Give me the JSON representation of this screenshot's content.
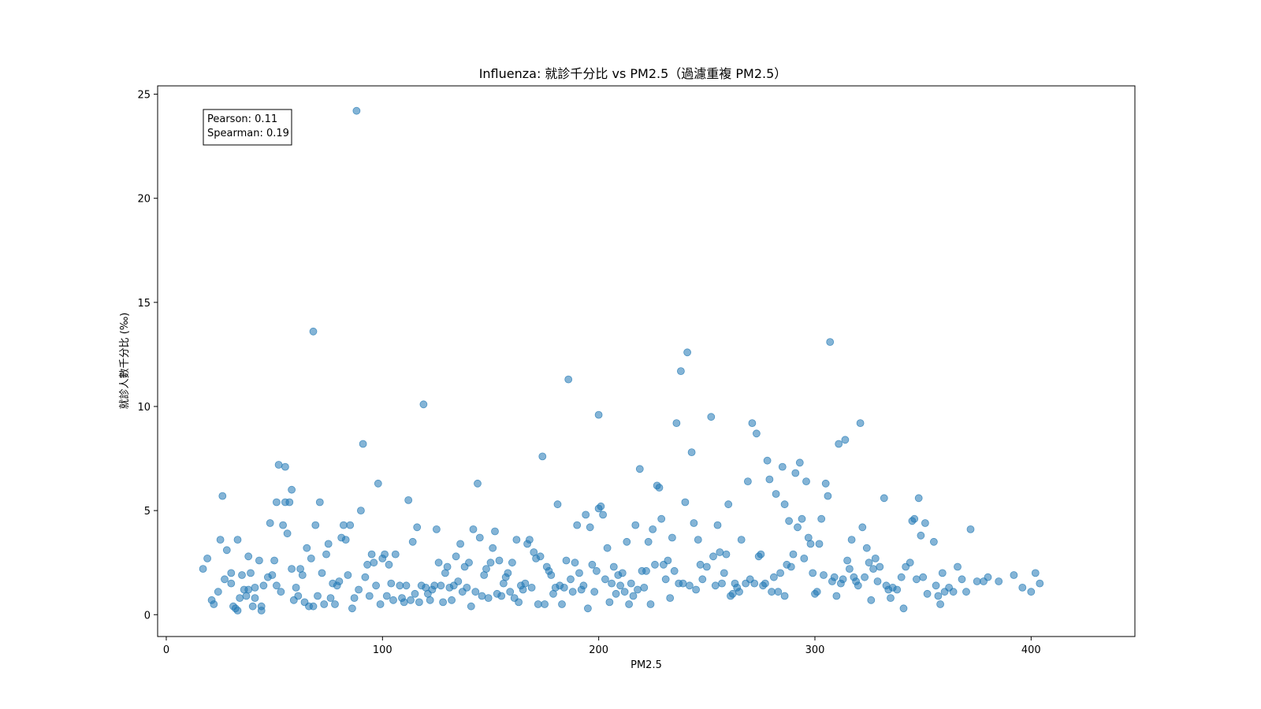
{
  "chart_data": {
    "type": "scatter",
    "title": "Influenza: 就診千分比 vs PM2.5（過濾重複 PM2.5）",
    "xlabel": "PM2.5",
    "ylabel": "就診人數千分比 (‰)",
    "xlim": [
      -4,
      448
    ],
    "ylim": [
      -1.05,
      25.4
    ],
    "xticks": [
      0,
      100,
      200,
      300,
      400
    ],
    "yticks": [
      0,
      5,
      10,
      15,
      20,
      25
    ],
    "grid": false,
    "marker_color": "#1f77b4",
    "marker_alpha": 0.55,
    "stats_box": {
      "pearson": "Pearson: 0.11",
      "spearman": "Spearman: 0.19"
    },
    "points": [
      [
        17,
        2.2
      ],
      [
        19,
        2.7
      ],
      [
        21,
        0.7
      ],
      [
        22,
        0.5
      ],
      [
        24,
        1.1
      ],
      [
        25,
        3.6
      ],
      [
        26,
        5.7
      ],
      [
        27,
        1.7
      ],
      [
        28,
        3.1
      ],
      [
        30,
        1.5
      ],
      [
        30,
        2.0
      ],
      [
        31,
        0.4
      ],
      [
        32,
        0.3
      ],
      [
        33,
        0.2
      ],
      [
        33,
        3.6
      ],
      [
        34,
        0.8
      ],
      [
        35,
        1.9
      ],
      [
        36,
        1.2
      ],
      [
        37,
        0.9
      ],
      [
        38,
        1.2
      ],
      [
        38,
        2.8
      ],
      [
        39,
        2.0
      ],
      [
        40,
        0.4
      ],
      [
        41,
        0.8
      ],
      [
        41,
        1.3
      ],
      [
        43,
        2.6
      ],
      [
        44,
        0.4
      ],
      [
        44,
        0.2
      ],
      [
        45,
        1.4
      ],
      [
        47,
        1.8
      ],
      [
        48,
        4.4
      ],
      [
        49,
        1.9
      ],
      [
        50,
        2.6
      ],
      [
        51,
        1.4
      ],
      [
        51,
        5.4
      ],
      [
        52,
        7.2
      ],
      [
        53,
        1.1
      ],
      [
        54,
        4.3
      ],
      [
        55,
        5.4
      ],
      [
        56,
        3.9
      ],
      [
        55,
        7.1
      ],
      [
        57,
        5.4
      ],
      [
        58,
        6.0
      ],
      [
        58,
        2.2
      ],
      [
        59,
        0.7
      ],
      [
        60,
        1.3
      ],
      [
        61,
        0.9
      ],
      [
        62,
        2.2
      ],
      [
        63,
        1.9
      ],
      [
        64,
        0.6
      ],
      [
        65,
        3.2
      ],
      [
        66,
        0.4
      ],
      [
        67,
        2.7
      ],
      [
        68,
        0.4
      ],
      [
        68,
        13.6
      ],
      [
        69,
        4.3
      ],
      [
        70,
        0.9
      ],
      [
        71,
        5.4
      ],
      [
        72,
        2.0
      ],
      [
        73,
        0.5
      ],
      [
        74,
        2.9
      ],
      [
        75,
        3.4
      ],
      [
        76,
        0.8
      ],
      [
        77,
        1.5
      ],
      [
        78,
        0.5
      ],
      [
        79,
        1.4
      ],
      [
        80,
        1.6
      ],
      [
        81,
        3.7
      ],
      [
        82,
        4.3
      ],
      [
        83,
        3.6
      ],
      [
        84,
        1.9
      ],
      [
        85,
        4.3
      ],
      [
        86,
        0.3
      ],
      [
        87,
        0.8
      ],
      [
        88,
        24.2
      ],
      [
        89,
        1.2
      ],
      [
        90,
        5.0
      ],
      [
        91,
        8.2
      ],
      [
        92,
        1.8
      ],
      [
        93,
        2.4
      ],
      [
        94,
        0.9
      ],
      [
        95,
        2.9
      ],
      [
        96,
        2.5
      ],
      [
        97,
        1.4
      ],
      [
        98,
        6.3
      ],
      [
        99,
        0.5
      ],
      [
        100,
        2.7
      ],
      [
        101,
        2.9
      ],
      [
        102,
        0.9
      ],
      [
        103,
        2.4
      ],
      [
        104,
        1.5
      ],
      [
        105,
        0.7
      ],
      [
        106,
        2.9
      ],
      [
        108,
        1.4
      ],
      [
        109,
        0.8
      ],
      [
        110,
        0.6
      ],
      [
        111,
        1.4
      ],
      [
        112,
        5.5
      ],
      [
        113,
        0.7
      ],
      [
        114,
        3.5
      ],
      [
        115,
        1.0
      ],
      [
        116,
        4.2
      ],
      [
        117,
        0.6
      ],
      [
        118,
        1.4
      ],
      [
        119,
        10.1
      ],
      [
        120,
        1.3
      ],
      [
        121,
        1.0
      ],
      [
        122,
        0.7
      ],
      [
        123,
        1.2
      ],
      [
        124,
        1.4
      ],
      [
        125,
        4.1
      ],
      [
        126,
        2.5
      ],
      [
        127,
        1.4
      ],
      [
        128,
        0.6
      ],
      [
        129,
        2.0
      ],
      [
        130,
        2.3
      ],
      [
        131,
        1.3
      ],
      [
        132,
        0.7
      ],
      [
        133,
        1.4
      ],
      [
        134,
        2.8
      ],
      [
        135,
        1.6
      ],
      [
        136,
        3.4
      ],
      [
        137,
        1.1
      ],
      [
        138,
        2.3
      ],
      [
        139,
        1.3
      ],
      [
        140,
        2.5
      ],
      [
        141,
        0.4
      ],
      [
        142,
        4.1
      ],
      [
        143,
        1.1
      ],
      [
        144,
        6.3
      ],
      [
        145,
        3.7
      ],
      [
        146,
        0.9
      ],
      [
        147,
        1.9
      ],
      [
        148,
        2.2
      ],
      [
        149,
        0.8
      ],
      [
        150,
        2.5
      ],
      [
        151,
        3.2
      ],
      [
        152,
        4.0
      ],
      [
        153,
        1.0
      ],
      [
        154,
        2.6
      ],
      [
        155,
        0.9
      ],
      [
        156,
        1.5
      ],
      [
        157,
        1.8
      ],
      [
        158,
        2.0
      ],
      [
        159,
        1.1
      ],
      [
        160,
        2.5
      ],
      [
        161,
        0.8
      ],
      [
        162,
        3.6
      ],
      [
        163,
        0.6
      ],
      [
        164,
        1.4
      ],
      [
        165,
        1.2
      ],
      [
        166,
        1.5
      ],
      [
        167,
        3.4
      ],
      [
        168,
        3.6
      ],
      [
        169,
        1.3
      ],
      [
        170,
        3.0
      ],
      [
        171,
        2.7
      ],
      [
        172,
        0.5
      ],
      [
        173,
        2.8
      ],
      [
        174,
        7.6
      ],
      [
        175,
        0.5
      ],
      [
        176,
        2.3
      ],
      [
        177,
        2.1
      ],
      [
        178,
        1.9
      ],
      [
        179,
        1.0
      ],
      [
        180,
        1.3
      ],
      [
        181,
        5.3
      ],
      [
        182,
        1.4
      ],
      [
        183,
        0.5
      ],
      [
        184,
        1.3
      ],
      [
        185,
        2.6
      ],
      [
        186,
        11.3
      ],
      [
        187,
        1.7
      ],
      [
        188,
        1.1
      ],
      [
        189,
        2.5
      ],
      [
        190,
        4.3
      ],
      [
        191,
        2.0
      ],
      [
        192,
        1.2
      ],
      [
        193,
        1.4
      ],
      [
        194,
        4.8
      ],
      [
        195,
        0.3
      ],
      [
        196,
        4.2
      ],
      [
        197,
        2.4
      ],
      [
        198,
        1.1
      ],
      [
        199,
        2.1
      ],
      [
        200,
        9.6
      ],
      [
        200,
        5.1
      ],
      [
        201,
        5.2
      ],
      [
        202,
        4.8
      ],
      [
        203,
        1.7
      ],
      [
        204,
        3.2
      ],
      [
        205,
        0.6
      ],
      [
        206,
        1.5
      ],
      [
        207,
        2.3
      ],
      [
        208,
        1.0
      ],
      [
        209,
        1.9
      ],
      [
        210,
        1.4
      ],
      [
        211,
        2.0
      ],
      [
        212,
        1.1
      ],
      [
        213,
        3.5
      ],
      [
        214,
        0.5
      ],
      [
        215,
        1.5
      ],
      [
        216,
        0.9
      ],
      [
        217,
        4.3
      ],
      [
        218,
        1.2
      ],
      [
        219,
        7.0
      ],
      [
        220,
        2.1
      ],
      [
        221,
        1.3
      ],
      [
        222,
        2.1
      ],
      [
        223,
        3.5
      ],
      [
        224,
        0.5
      ],
      [
        225,
        4.1
      ],
      [
        226,
        2.4
      ],
      [
        227,
        6.2
      ],
      [
        228,
        6.1
      ],
      [
        229,
        4.6
      ],
      [
        230,
        2.4
      ],
      [
        231,
        1.7
      ],
      [
        232,
        2.6
      ],
      [
        233,
        0.8
      ],
      [
        234,
        3.7
      ],
      [
        235,
        2.1
      ],
      [
        236,
        9.2
      ],
      [
        237,
        1.5
      ],
      [
        238,
        11.7
      ],
      [
        239,
        1.5
      ],
      [
        240,
        5.4
      ],
      [
        241,
        12.6
      ],
      [
        242,
        1.4
      ],
      [
        243,
        7.8
      ],
      [
        244,
        4.4
      ],
      [
        245,
        1.2
      ],
      [
        246,
        3.6
      ],
      [
        247,
        2.4
      ],
      [
        248,
        1.7
      ],
      [
        250,
        2.3
      ],
      [
        252,
        9.5
      ],
      [
        253,
        2.8
      ],
      [
        254,
        1.4
      ],
      [
        255,
        4.3
      ],
      [
        256,
        3.0
      ],
      [
        257,
        1.5
      ],
      [
        258,
        2.0
      ],
      [
        259,
        2.9
      ],
      [
        260,
        5.3
      ],
      [
        261,
        0.9
      ],
      [
        262,
        1.0
      ],
      [
        263,
        1.5
      ],
      [
        264,
        1.3
      ],
      [
        265,
        1.1
      ],
      [
        266,
        3.6
      ],
      [
        268,
        1.5
      ],
      [
        269,
        6.4
      ],
      [
        270,
        1.7
      ],
      [
        271,
        9.2
      ],
      [
        272,
        1.5
      ],
      [
        273,
        8.7
      ],
      [
        274,
        2.8
      ],
      [
        275,
        2.9
      ],
      [
        276,
        1.4
      ],
      [
        277,
        1.5
      ],
      [
        278,
        7.4
      ],
      [
        279,
        6.5
      ],
      [
        280,
        1.1
      ],
      [
        281,
        1.8
      ],
      [
        282,
        5.8
      ],
      [
        283,
        1.1
      ],
      [
        284,
        2.0
      ],
      [
        285,
        7.1
      ],
      [
        286,
        5.3
      ],
      [
        286,
        0.9
      ],
      [
        287,
        2.4
      ],
      [
        288,
        4.5
      ],
      [
        289,
        2.3
      ],
      [
        290,
        2.9
      ],
      [
        291,
        6.8
      ],
      [
        292,
        4.2
      ],
      [
        293,
        7.3
      ],
      [
        294,
        4.6
      ],
      [
        295,
        2.7
      ],
      [
        296,
        6.4
      ],
      [
        297,
        3.7
      ],
      [
        298,
        3.4
      ],
      [
        299,
        2.0
      ],
      [
        300,
        1.0
      ],
      [
        301,
        1.1
      ],
      [
        302,
        3.4
      ],
      [
        303,
        4.6
      ],
      [
        304,
        1.9
      ],
      [
        305,
        6.3
      ],
      [
        306,
        5.7
      ],
      [
        307,
        13.1
      ],
      [
        308,
        1.6
      ],
      [
        309,
        1.8
      ],
      [
        310,
        0.9
      ],
      [
        311,
        8.2
      ],
      [
        312,
        1.5
      ],
      [
        313,
        1.7
      ],
      [
        314,
        8.4
      ],
      [
        315,
        2.6
      ],
      [
        316,
        2.2
      ],
      [
        317,
        3.6
      ],
      [
        318,
        1.8
      ],
      [
        319,
        1.6
      ],
      [
        320,
        1.4
      ],
      [
        321,
        9.2
      ],
      [
        322,
        4.2
      ],
      [
        323,
        1.8
      ],
      [
        324,
        3.2
      ],
      [
        325,
        2.5
      ],
      [
        326,
        0.7
      ],
      [
        327,
        2.2
      ],
      [
        328,
        2.7
      ],
      [
        329,
        1.6
      ],
      [
        330,
        2.3
      ],
      [
        332,
        5.6
      ],
      [
        333,
        1.4
      ],
      [
        334,
        1.2
      ],
      [
        335,
        0.8
      ],
      [
        336,
        1.3
      ],
      [
        338,
        1.2
      ],
      [
        340,
        1.8
      ],
      [
        341,
        0.3
      ],
      [
        342,
        2.3
      ],
      [
        344,
        2.5
      ],
      [
        345,
        4.5
      ],
      [
        346,
        4.6
      ],
      [
        347,
        1.7
      ],
      [
        348,
        5.6
      ],
      [
        349,
        3.8
      ],
      [
        350,
        1.8
      ],
      [
        351,
        4.4
      ],
      [
        352,
        1.0
      ],
      [
        355,
        3.5
      ],
      [
        356,
        1.4
      ],
      [
        357,
        0.9
      ],
      [
        358,
        0.5
      ],
      [
        359,
        2.0
      ],
      [
        360,
        1.1
      ],
      [
        362,
        1.3
      ],
      [
        364,
        1.1
      ],
      [
        366,
        2.3
      ],
      [
        368,
        1.7
      ],
      [
        370,
        1.1
      ],
      [
        372,
        4.1
      ],
      [
        375,
        1.6
      ],
      [
        378,
        1.6
      ],
      [
        380,
        1.8
      ],
      [
        385,
        1.6
      ],
      [
        392,
        1.9
      ],
      [
        396,
        1.3
      ],
      [
        400,
        1.1
      ],
      [
        402,
        2.0
      ],
      [
        404,
        1.5
      ]
    ]
  }
}
